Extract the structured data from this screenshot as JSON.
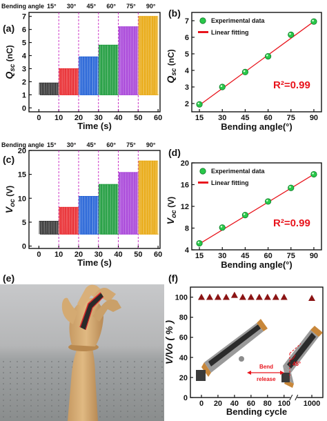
{
  "panels": {
    "a": "(a)",
    "b": "(b)",
    "c": "(c)",
    "d": "(d)",
    "e": "(e)",
    "f": "(f)"
  },
  "top_label": {
    "prefix": "Bending angle",
    "angles": [
      "15°",
      "30°",
      "45°",
      "60°",
      "75°",
      "90°"
    ]
  },
  "chart_data": [
    {
      "panel": "a",
      "type": "line",
      "xlabel": "Time (s)",
      "ylabel": "Qsc (nC)",
      "ylabel_main": "Q",
      "ylabel_sub": "sc",
      "ylabel_unit": " (nC)",
      "xlim": [
        -5,
        61
      ],
      "ylim": [
        -0.3,
        7.3
      ],
      "xticks": [
        0,
        10,
        20,
        30,
        40,
        50,
        60
      ],
      "yticks": [
        0,
        1,
        2,
        3,
        4,
        5,
        6,
        7
      ],
      "segment_boundaries": [
        10,
        20,
        30,
        40,
        50
      ],
      "series": [
        {
          "angle": "15°",
          "x_range": [
            0,
            10
          ],
          "low": 1.0,
          "high": 1.9,
          "color": "#333333"
        },
        {
          "angle": "30°",
          "x_range": [
            10,
            20
          ],
          "low": 1.0,
          "high": 3.0,
          "color": "#e8262b"
        },
        {
          "angle": "45°",
          "x_range": [
            20,
            30
          ],
          "low": 1.0,
          "high": 3.9,
          "color": "#1f5fd6"
        },
        {
          "angle": "60°",
          "x_range": [
            30,
            40
          ],
          "low": 1.0,
          "high": 4.8,
          "color": "#1a9a3a"
        },
        {
          "angle": "75°",
          "x_range": [
            40,
            50
          ],
          "low": 1.0,
          "high": 6.2,
          "color": "#a640d8"
        },
        {
          "angle": "90°",
          "x_range": [
            50,
            60
          ],
          "low": 1.0,
          "high": 7.0,
          "color": "#e8a70c"
        }
      ]
    },
    {
      "panel": "b",
      "type": "scatter",
      "xlabel": "Bending angle(°)",
      "ylabel": "Qsc (nC)",
      "ylabel_main": "Q",
      "ylabel_sub": "sc",
      "ylabel_unit": " (nC)",
      "xlim": [
        10,
        95
      ],
      "ylim": [
        1.5,
        7.5
      ],
      "xticks": [
        15,
        30,
        45,
        60,
        75,
        90
      ],
      "yticks": [
        2,
        3,
        4,
        5,
        6,
        7
      ],
      "x": [
        15,
        30,
        45,
        60,
        75,
        90
      ],
      "y": [
        1.95,
        3.0,
        3.9,
        4.85,
        6.15,
        6.95
      ],
      "fit": [
        [
          15,
          1.9
        ],
        [
          90,
          6.95
        ]
      ],
      "legend": [
        "Experimental data",
        "Linear fitting"
      ],
      "annotation": "R²=0.99"
    },
    {
      "panel": "c",
      "type": "line",
      "xlabel": "Time (s)",
      "ylabel": "Voc (V)",
      "ylabel_main": "V",
      "ylabel_sub": "oc",
      "ylabel_unit": " (V)",
      "xlim": [
        -5,
        61
      ],
      "ylim": [
        -0.5,
        20
      ],
      "xticks": [
        0,
        10,
        20,
        30,
        40,
        50,
        60
      ],
      "yticks": [
        0,
        5,
        10,
        15,
        20
      ],
      "segment_boundaries": [
        10,
        20,
        30,
        40,
        50
      ],
      "series": [
        {
          "angle": "15°",
          "x_range": [
            0,
            10
          ],
          "low": 2.5,
          "high": 5.2,
          "color": "#333333"
        },
        {
          "angle": "30°",
          "x_range": [
            10,
            20
          ],
          "low": 2.5,
          "high": 8.1,
          "color": "#e8262b"
        },
        {
          "angle": "45°",
          "x_range": [
            20,
            30
          ],
          "low": 2.5,
          "high": 10.4,
          "color": "#1f5fd6"
        },
        {
          "angle": "60°",
          "x_range": [
            30,
            40
          ],
          "low": 2.5,
          "high": 12.9,
          "color": "#1a9a3a"
        },
        {
          "angle": "75°",
          "x_range": [
            40,
            50
          ],
          "low": 2.5,
          "high": 15.4,
          "color": "#a640d8"
        },
        {
          "angle": "90°",
          "x_range": [
            50,
            60
          ],
          "low": 2.5,
          "high": 17.8,
          "color": "#e8a70c"
        }
      ]
    },
    {
      "panel": "d",
      "type": "scatter",
      "xlabel": "Bending angle(°)",
      "ylabel": "Voc (V)",
      "ylabel_main": "V",
      "ylabel_sub": "oc",
      "ylabel_unit": " (V)",
      "xlim": [
        10,
        95
      ],
      "ylim": [
        4,
        20
      ],
      "xticks": [
        15,
        30,
        45,
        60,
        75,
        90
      ],
      "yticks": [
        4,
        8,
        12,
        16,
        20
      ],
      "x": [
        15,
        30,
        45,
        60,
        75,
        90
      ],
      "y": [
        5.2,
        8.1,
        10.4,
        12.9,
        15.4,
        17.9
      ],
      "fit": [
        [
          15,
          5.1
        ],
        [
          90,
          17.9
        ]
      ],
      "legend": [
        "Experimental data",
        "Linear fitting"
      ],
      "annotation": "R²=0.99"
    },
    {
      "panel": "f",
      "type": "scatter",
      "xlabel": "Bending cycle",
      "ylabel": "V/Vo (%)",
      "ylabel_text": "V/Vo ( % )",
      "ylim": [
        0,
        110
      ],
      "yticks": [
        0,
        20,
        40,
        60,
        80,
        100
      ],
      "xticks": [
        "0",
        "20",
        "40",
        "60",
        "80",
        "100",
        "1000"
      ],
      "x": [
        0,
        10,
        20,
        30,
        40,
        50,
        60,
        70,
        80,
        90,
        100,
        1000
      ],
      "y": [
        100,
        100,
        100,
        100,
        102,
        100,
        100,
        100,
        100,
        100,
        100,
        99
      ],
      "inset": {
        "bend": "Bend",
        "release": "release",
        "angle": "45°"
      }
    }
  ]
}
